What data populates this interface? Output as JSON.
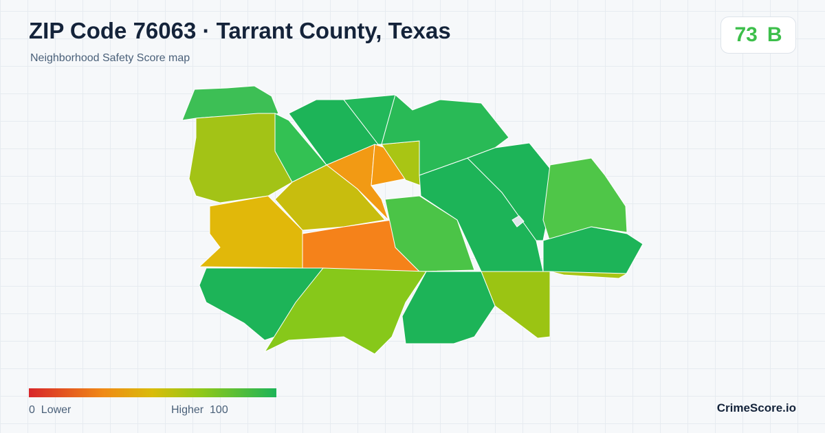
{
  "header": {
    "title": "ZIP Code 76063 · Tarrant County, Texas",
    "subtitle": "Neighborhood Safety Score map"
  },
  "score": {
    "value": 73,
    "grade": "B"
  },
  "legend": {
    "min": 0,
    "min_label": "Lower",
    "max_label": "Higher",
    "max": 100
  },
  "brand": "CrimeScore.io"
}
